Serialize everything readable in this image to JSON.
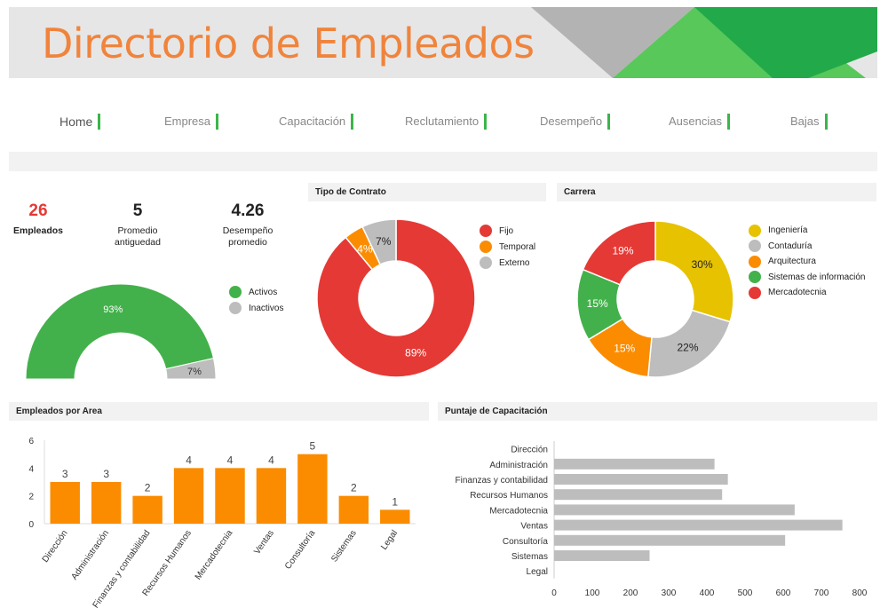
{
  "header": {
    "title": "Directorio de Empleados"
  },
  "nav": [
    "Home",
    "Empresa",
    "Capacitación",
    "Reclutamiento",
    "Desempeño",
    "Ausencias",
    "Bajas"
  ],
  "kpis": [
    {
      "value": "26",
      "label": "Empleados",
      "color": "#e53935"
    },
    {
      "value": "5",
      "label": "Promedio antiguedad",
      "color": "#111111"
    },
    {
      "value": "4.26",
      "label": "Desempeño promedio",
      "color": "#111111"
    }
  ],
  "colors": {
    "accent": "#f0843c",
    "green": "#43b14b",
    "red": "#e53935",
    "orange": "#fb8c00",
    "gray": "#bdbdbd",
    "yellow": "#e6c200"
  },
  "chart_data": [
    {
      "type": "pie",
      "subtype": "half-donut",
      "categories": [
        "Activos",
        "Inactivos"
      ],
      "values": [
        93,
        7
      ],
      "labels": [
        "93%",
        "7%"
      ],
      "colors": [
        "#43b14b",
        "#bdbdbd"
      ]
    },
    {
      "type": "pie",
      "subtype": "donut",
      "title": "Tipo de Contrato",
      "categories": [
        "Fijo",
        "Temporal",
        "Externo"
      ],
      "values": [
        89,
        4,
        7
      ],
      "labels": [
        "89%",
        "4%",
        "7%"
      ],
      "colors": [
        "#e53935",
        "#fb8c00",
        "#bdbdbd"
      ]
    },
    {
      "type": "pie",
      "subtype": "donut",
      "title": "Carrera",
      "categories": [
        "Ingeniería",
        "Contaduría",
        "Arquitectura",
        "Sistemas de información",
        "Mercadotecnia"
      ],
      "values": [
        30,
        22,
        15,
        15,
        19
      ],
      "labels": [
        "30%",
        "22%",
        "15%",
        "15%",
        "19%"
      ],
      "colors": [
        "#e6c200",
        "#bdbdbd",
        "#fb8c00",
        "#43b14b",
        "#e53935"
      ]
    },
    {
      "type": "bar",
      "title": "Empleados por Area",
      "categories": [
        "Dirección",
        "Administración",
        "Finanzas y contabilidad",
        "Recursos Humanos",
        "Mercadotecnia",
        "Ventas",
        "Consultoría",
        "Sistemas",
        "Legal"
      ],
      "values": [
        3,
        3,
        2,
        4,
        4,
        4,
        5,
        2,
        1
      ],
      "ylim": [
        0,
        6
      ],
      "yticks": [
        0,
        2,
        4,
        6
      ],
      "color": "#fb8c00"
    },
    {
      "type": "bar",
      "orientation": "horizontal",
      "title": "Puntaje de Capacitación",
      "categories": [
        "Dirección",
        "Administración",
        "Finanzas y contabilidad",
        "Recursos Humanos",
        "Mercadotecnia",
        "Ventas",
        "Consultoría",
        "Sistemas",
        "Legal"
      ],
      "values": [
        0,
        420,
        455,
        440,
        630,
        755,
        605,
        250,
        0
      ],
      "xlim": [
        0,
        800
      ],
      "xticks": [
        0,
        100,
        200,
        300,
        400,
        500,
        600,
        700,
        800
      ],
      "color": "#bdbdbd"
    }
  ]
}
